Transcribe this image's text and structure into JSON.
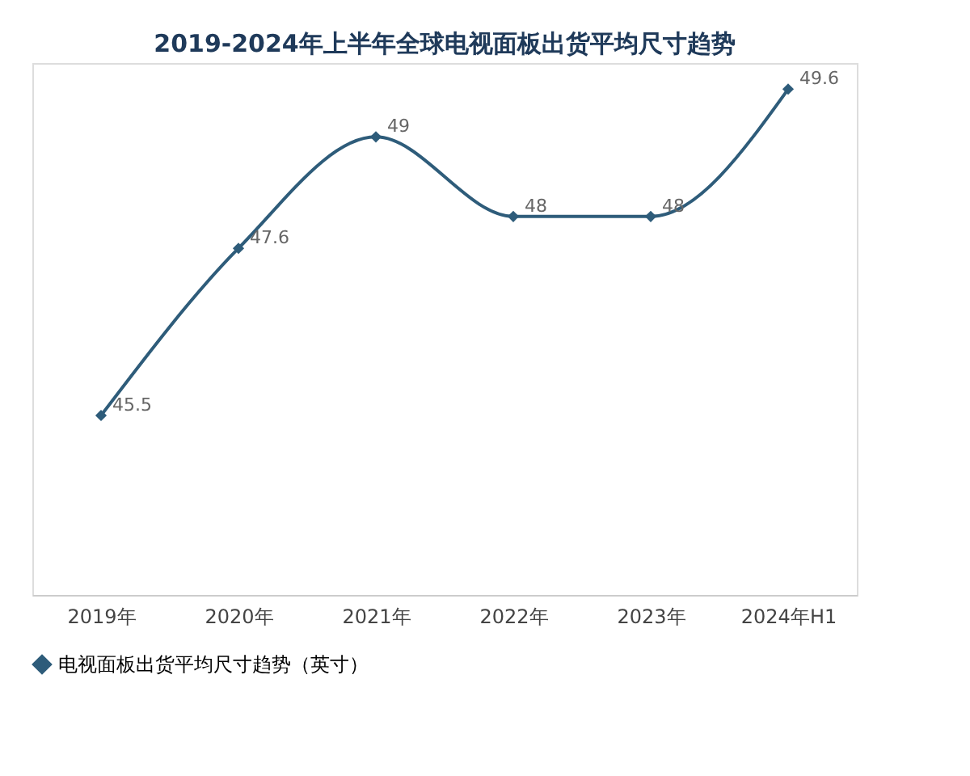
{
  "chart_data": {
    "type": "line",
    "title": "2019-2024年上半年全球电视面板出货平均尺寸趋势",
    "categories": [
      "2019年",
      "2020年",
      "2021年",
      "2022年",
      "2023年",
      "2024年H1"
    ],
    "series": [
      {
        "name": "电视面板出货平均尺寸趋势（英寸）",
        "color": "#2e5c7a",
        "values": [
          45.5,
          47.6,
          49,
          48,
          48,
          49.6
        ]
      }
    ],
    "data_labels": true,
    "marker": "diamond",
    "legend": "bottom",
    "grid": false
  }
}
